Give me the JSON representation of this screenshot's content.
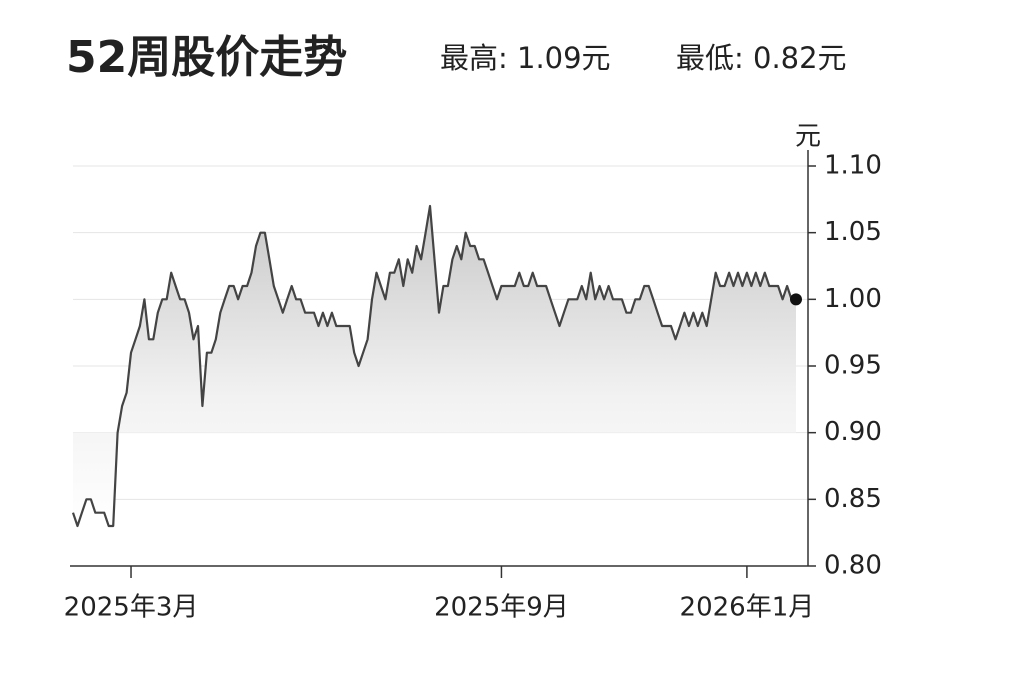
{
  "chart_data": {
    "type": "line",
    "title": "52周股价走势",
    "annotations": [
      "最高: 1.09元",
      "最低: 0.82元"
    ],
    "y_axis_label": "元",
    "color": "#444444",
    "categories": [
      null,
      null,
      null,
      null,
      null,
      null,
      null,
      null,
      null,
      null,
      null,
      null,
      null,
      "2025年3月",
      null,
      null,
      null,
      null,
      null,
      null,
      null,
      null,
      null,
      null,
      null,
      null,
      null,
      null,
      null,
      null,
      null,
      null,
      null,
      null,
      null,
      null,
      null,
      null,
      null,
      null,
      null,
      null,
      null,
      null,
      null,
      null,
      null,
      null,
      null,
      null,
      null,
      null,
      null,
      null,
      null,
      null,
      null,
      null,
      null,
      null,
      null,
      null,
      null,
      null,
      null,
      null,
      null,
      null,
      null,
      null,
      null,
      null,
      null,
      null,
      null,
      null,
      null,
      null,
      null,
      null,
      null,
      null,
      null,
      null,
      null,
      null,
      null,
      null,
      null,
      null,
      null,
      null,
      null,
      null,
      null,
      null,
      "2025年9月",
      null,
      null,
      null,
      null,
      null,
      null,
      null,
      null,
      null,
      null,
      null,
      null,
      null,
      null,
      null,
      null,
      null,
      null,
      null,
      null,
      null,
      null,
      null,
      null,
      null,
      null,
      null,
      null,
      null,
      null,
      null,
      null,
      null,
      null,
      null,
      null,
      null,
      null,
      null,
      null,
      null,
      null,
      null,
      null,
      null,
      null,
      null,
      null,
      null,
      null,
      null,
      null,
      null,
      null,
      "2026年1月",
      null,
      null,
      null,
      null,
      null,
      null,
      null,
      null,
      null,
      null,
      null
    ],
    "values": [
      0.84,
      0.83,
      0.84,
      0.85,
      0.85,
      0.84,
      0.84,
      0.84,
      0.83,
      0.83,
      0.9,
      0.92,
      0.93,
      0.96,
      0.97,
      0.98,
      1.0,
      0.97,
      0.97,
      0.99,
      1.0,
      1.0,
      1.02,
      1.01,
      1.0,
      1.0,
      0.99,
      0.97,
      0.98,
      0.92,
      0.96,
      0.96,
      0.97,
      0.99,
      1.0,
      1.01,
      1.01,
      1.0,
      1.01,
      1.01,
      1.02,
      1.04,
      1.05,
      1.05,
      1.03,
      1.01,
      1.0,
      0.99,
      1.0,
      1.01,
      1.0,
      1.0,
      0.99,
      0.99,
      0.99,
      0.98,
      0.99,
      0.98,
      0.99,
      0.98,
      0.98,
      0.98,
      0.98,
      0.96,
      0.95,
      0.96,
      0.97,
      1.0,
      1.02,
      1.01,
      1.0,
      1.02,
      1.02,
      1.03,
      1.01,
      1.03,
      1.02,
      1.04,
      1.03,
      1.05,
      1.07,
      1.03,
      0.99,
      1.01,
      1.01,
      1.03,
      1.04,
      1.03,
      1.05,
      1.04,
      1.04,
      1.03,
      1.03,
      1.02,
      1.01,
      1.0,
      1.01,
      1.01,
      1.01,
      1.01,
      1.02,
      1.01,
      1.01,
      1.02,
      1.01,
      1.01,
      1.01,
      1.0,
      0.99,
      0.98,
      0.99,
      1.0,
      1.0,
      1.0,
      1.01,
      1.0,
      1.02,
      1.0,
      1.01,
      1.0,
      1.01,
      1.0,
      1.0,
      1.0,
      0.99,
      0.99,
      1.0,
      1.0,
      1.01,
      1.01,
      1.0,
      0.99,
      0.98,
      0.98,
      0.98,
      0.97,
      0.98,
      0.99,
      0.98,
      0.99,
      0.98,
      0.99,
      0.98,
      1.0,
      1.02,
      1.01,
      1.01,
      1.02,
      1.01,
      1.02,
      1.01,
      1.02,
      1.01,
      1.02,
      1.01,
      1.02,
      1.01,
      1.01,
      1.01,
      1.0,
      1.01,
      1.0,
      1.0
    ],
    "ylim": [
      0.8,
      1.1
    ],
    "yticks": [
      {
        "value": 0.8,
        "label": "0.80"
      },
      0.85,
      {
        "value": 0.9,
        "label": "0.90"
      },
      0.95,
      {
        "value": 1.0,
        "label": "1.00"
      },
      1.05,
      {
        "value": 1.1,
        "label": "1.10"
      }
    ],
    "grid": true
  }
}
